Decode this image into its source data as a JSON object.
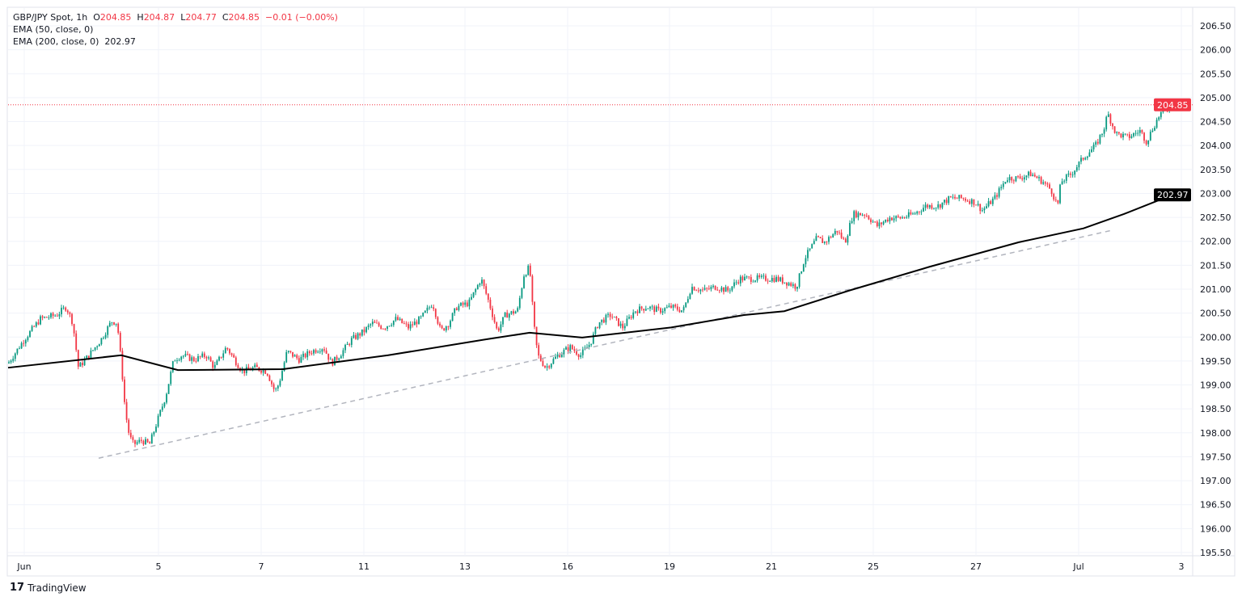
{
  "header": {
    "symbol": "GBP/JPY Spot, 1h",
    "o_label": "O",
    "o": "204.85",
    "h_label": "H",
    "h": "204.87",
    "l_label": "L",
    "l": "204.77",
    "c_label": "C",
    "c": "204.85",
    "change": "−0.01 (−0.00%)",
    "ema50": "EMA (50, close, 0)",
    "ema200": "EMA (200, close, 0)",
    "ema200_value": "202.97"
  },
  "brand": "TradingView",
  "colors": {
    "up": "#089981",
    "down": "#f23645",
    "ema": "#000000",
    "trendline": "#b2b5be",
    "grid": "#f0f3fa"
  },
  "chart_data": {
    "type": "candlestick",
    "interval": "1h",
    "ylim": [
      195.5,
      206.75
    ],
    "yticks": [
      "206.50",
      "206.00",
      "205.50",
      "205.00",
      "204.50",
      "204.00",
      "203.50",
      "203.00",
      "202.50",
      "202.00",
      "201.50",
      "201.00",
      "200.50",
      "200.00",
      "199.50",
      "199.00",
      "198.50",
      "198.00",
      "197.50",
      "197.00",
      "196.50",
      "196.00",
      "195.50"
    ],
    "xticks": [
      "Jun",
      "5",
      "7",
      "11",
      "13",
      "16",
      "19",
      "21",
      "25",
      "27",
      "Jul",
      "3"
    ],
    "last_price": "204.85",
    "ema200_last": "202.97",
    "close_path": [
      199.45,
      199.95,
      200.38,
      200.46,
      200.63,
      200.3,
      199.36,
      199.62,
      199.95,
      200.33,
      200.3,
      199.45,
      198.44,
      197.93,
      197.76,
      197.84,
      197.76,
      198.27,
      198.77,
      199.53,
      199.62,
      199.53,
      199.62,
      199.36,
      199.79,
      199.53,
      199.28,
      199.36,
      199.28,
      198.86,
      199.03,
      199.7,
      199.53,
      199.7,
      199.79,
      199.45,
      199.62,
      199.95,
      200.12,
      200.29,
      200.2,
      200.38,
      200.2,
      200.38,
      200.71,
      200.12,
      200.29,
      200.63,
      200.71,
      201.22,
      200.71,
      200.12,
      200.46,
      200.55,
      201.3,
      201.47,
      200.29,
      199.62,
      199.36,
      199.62,
      199.79,
      199.62,
      199.87,
      200.29,
      200.46,
      200.2,
      200.55,
      200.63,
      200.55,
      200.63,
      200.55,
      201.05,
      200.97,
      201.05,
      200.97,
      201.22,
      201.22,
      201.22,
      201.22,
      201.13,
      201.05,
      201.64,
      202.06,
      201.98,
      202.23,
      201.98,
      202.57,
      202.57,
      202.32,
      202.49,
      202.49,
      202.57,
      202.74,
      202.74,
      202.9,
      202.9,
      202.82,
      202.65,
      202.9,
      203.32,
      203.32,
      203.41,
      203.24,
      203.07,
      202.74,
      203.24,
      203.41,
      203.75,
      204.0,
      204.34,
      204.67,
      204.25,
      204.17,
      204.31,
      204.08,
      204.34,
      204.67,
      204.85
    ],
    "ema200": [
      199.36,
      199.62,
      199.31,
      199.33,
      199.62,
      199.95,
      200.09,
      199.99,
      200.2,
      200.46,
      200.54,
      200.97,
      201.47,
      201.98,
      202.27,
      202.57,
      202.97
    ],
    "trendline": [
      197.47,
      202.23
    ]
  }
}
